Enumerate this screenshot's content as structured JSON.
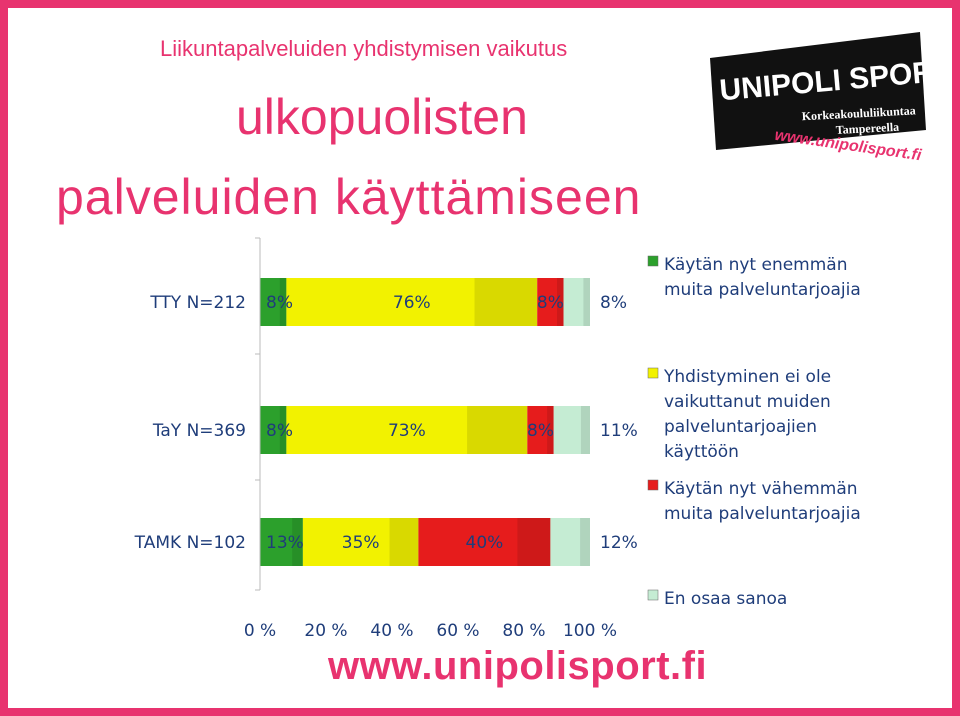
{
  "header": {
    "subtitle": "Liikuntapalveluiden yhdistymisen vaikutus",
    "title_line1": "ulkopuolisten",
    "title_line2": "palveluiden käyttämiseen"
  },
  "logo": {
    "name": "UNIPOLI SPORT",
    "tagline1": "Korkeakoululiikuntaa",
    "tagline2": "Tampereella",
    "url": "www.unipolisport.fi"
  },
  "footer": {
    "url": "www.unipolisport.fi"
  },
  "colors": {
    "brand": "#e8336f",
    "green": "#2ca02c",
    "yellow": "#f2f200",
    "red": "#e61c1c",
    "lightgreen": "#c5ecd3"
  },
  "chart_data": {
    "type": "bar",
    "orientation": "horizontal",
    "stacked": true,
    "categories": [
      "TTY N=212",
      "TaY N=369",
      "TAMK N=102"
    ],
    "series": [
      {
        "name": "Käytän nyt enemmän muita palveluntarjoajia",
        "values": [
          8,
          8,
          13
        ],
        "labels": [
          "8%",
          "8%",
          "13%"
        ],
        "color": "#2ca02c"
      },
      {
        "name": "Yhdistyminen ei ole vaikuttanut muiden palveluntarjoajien käyttöön",
        "values": [
          76,
          73,
          35
        ],
        "labels": [
          "76%",
          "73%",
          "35%"
        ],
        "color": "#f2f200"
      },
      {
        "name": "Käytän nyt vähemmän muita palveluntarjoajia",
        "values": [
          8,
          8,
          40
        ],
        "labels": [
          "8%",
          "8%",
          "40%"
        ],
        "color": "#e61c1c"
      },
      {
        "name": "En osaa sanoa",
        "values": [
          8,
          11,
          12
        ],
        "labels": [
          "8%",
          "11%",
          "12%"
        ],
        "color": "#c5ecd3"
      }
    ],
    "xlim": [
      0,
      100
    ],
    "xticks": [
      "0 %",
      "20 %",
      "40 %",
      "60 %",
      "80 %",
      "100 %"
    ],
    "legend": "right",
    "grid": false
  }
}
